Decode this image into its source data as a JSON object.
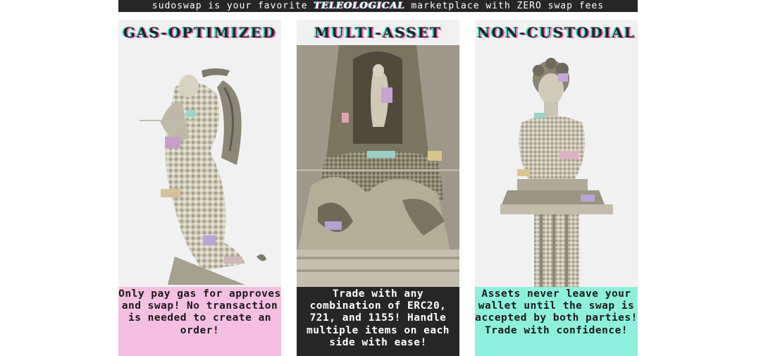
{
  "banner": {
    "prefix": "sudoswap is your favorite",
    "highlight": "TELEOLOGICAL",
    "suffix": "marketplace with ZERO swap fees"
  },
  "colors": {
    "banner_bg": "#262626",
    "card_bg": "#f1f1f1",
    "pink": "#f4bfe0",
    "dark": "#262626",
    "mint": "#8ef0dc",
    "accent_cyan": "#35e6c9",
    "accent_pink": "#ff5fb8"
  },
  "cards": [
    {
      "title": "GAS-OPTIMIZED",
      "caption": "Only pay gas for approves and swap! No transaction is needed to create an order!",
      "caption_bg": "#f4bfe0",
      "caption_color": "#1a1a1a",
      "image": "angel-statue-glitch"
    },
    {
      "title": "MULTI-ASSET",
      "caption": "Trade with any combination of ERC20, 721, and 1155! Handle multiple items on each side with ease!",
      "caption_bg": "#262626",
      "caption_color": "#ffffff",
      "image": "fountain-statue-glitch"
    },
    {
      "title": "NON-CUSTODIAL",
      "caption": "Assets never leave your wallet until the swap is accepted by both parties! Trade with confidence!",
      "caption_bg": "#8ef0dc",
      "caption_color": "#1a1a1a",
      "image": "bust-on-column-glitch"
    }
  ]
}
